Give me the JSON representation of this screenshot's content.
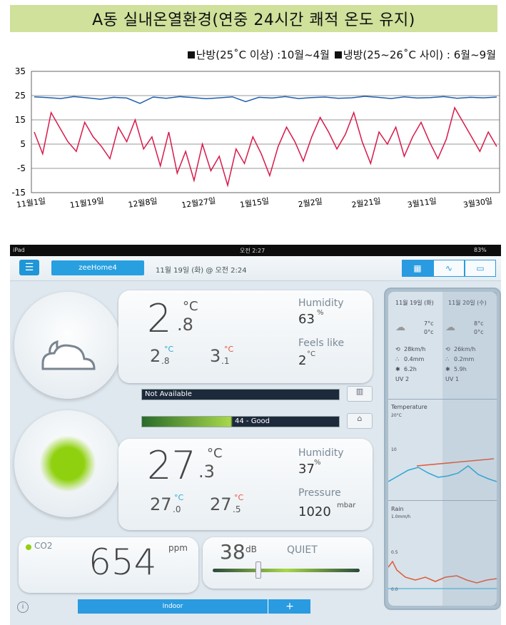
{
  "header": {
    "title": "A동 실내온열환경(연중 24시간 쾌적 온도 유지)",
    "legend_heating": "난방(25˚C 이상) :10월~4월",
    "legend_cooling": "냉방(25~26˚C 사이) : 6월~9월"
  },
  "chart_data": {
    "type": "line",
    "x_tick_labels": [
      "11월1일",
      "11월19일",
      "12월8일",
      "12월27일",
      "1월15일",
      "2월2일",
      "2월21일",
      "3월11일",
      "3월30일"
    ],
    "ylim": [
      -15,
      35
    ],
    "y_ticks": [
      -15,
      -5,
      5,
      15,
      25,
      35
    ],
    "grid": true,
    "series": [
      {
        "color": "#1f5fad",
        "values": [
          24.5,
          24.2,
          23.8,
          24.6,
          24.1,
          23.5,
          24.3,
          24.0,
          21.8,
          24.4,
          23.9,
          24.6,
          24.2,
          23.7,
          24.1,
          24.5,
          22.5,
          24.3,
          24.0,
          24.6,
          23.8,
          24.2,
          24.4,
          23.9,
          24.1,
          24.7,
          24.3,
          23.8,
          24.5,
          24.0,
          24.2,
          24.6,
          23.9,
          24.3,
          24.1,
          24.4
        ]
      },
      {
        "color": "#d8194a",
        "values": [
          10,
          1,
          18,
          12,
          6,
          2,
          14,
          8,
          4,
          -1,
          12,
          6,
          15,
          3,
          8,
          -4,
          10,
          -7,
          2,
          -10,
          5,
          -6,
          0,
          -12,
          3,
          -3,
          8,
          1,
          -8,
          4,
          12,
          6,
          -2,
          8,
          16,
          10,
          3,
          9,
          18,
          6,
          -3,
          10,
          5,
          12,
          0,
          8,
          14,
          6,
          -1,
          7,
          20,
          14,
          8,
          2,
          10,
          4
        ]
      }
    ]
  },
  "ipad": {
    "status_left": "iPad",
    "status_time": "오전 2:27",
    "status_battery": "83%",
    "home_label": "zeeHome4",
    "date_label": "11월 19일 (화) @ 오전 2:24",
    "outdoor": {
      "temp_main": "2",
      "temp_dec": ".8",
      "temp_unit": "°C",
      "min_temp": "2",
      "min_dec": ".8",
      "max_temp": "3",
      "max_dec": ".1",
      "small_unit": "°C",
      "humidity_label": "Humidity",
      "humidity_value": "63",
      "humidity_unit": "%",
      "feels_label": "Feels like",
      "feels_value": "2",
      "feels_unit": "°C",
      "status_bar": "Not Available"
    },
    "indoor": {
      "quality_bar": "44 - Good",
      "temp_main": "27",
      "temp_dec": ".3",
      "temp_unit": "°C",
      "min_temp": "27",
      "min_dec": ".0",
      "max_temp": "27",
      "max_dec": ".5",
      "small_unit": "°C",
      "humidity_label": "Humidity",
      "humidity_value": "37",
      "humidity_unit": "%",
      "pressure_label": "Pressure",
      "pressure_value": "1020",
      "pressure_unit": "mbar",
      "co2_label": "CO2",
      "co2_value": "654",
      "co2_unit": "ppm",
      "noise_value": "38",
      "noise_unit": "dB",
      "noise_label": "QUIET"
    },
    "forecast": {
      "day1_label": "11월 19일 (화)",
      "day2_label": "11월 20일 (수)",
      "day1_max": "7°c",
      "day1_min": "0°c",
      "day2_max": "8°c",
      "day2_min": "0°c",
      "day1_wind": "28km/h",
      "day1_rain": "0.4mm",
      "day1_sun": "6.2h",
      "day1_uv": "2",
      "day2_wind": "26km/h",
      "day2_rain": "0.2mm",
      "day2_sun": "5.9h",
      "day2_uv": "1",
      "uv_label": "UV",
      "temp_chart_label": "Temperature",
      "temp_chart_top": "20°C",
      "temp_chart_mid": "10",
      "rain_chart_label": "Rain",
      "rain_chart_top": "1.0mm/h",
      "rain_chart_mid": "0.5",
      "rain_chart_bottom": "0.0"
    },
    "bottom": {
      "indoor_label": "Indoor",
      "plus_label": "+"
    }
  }
}
